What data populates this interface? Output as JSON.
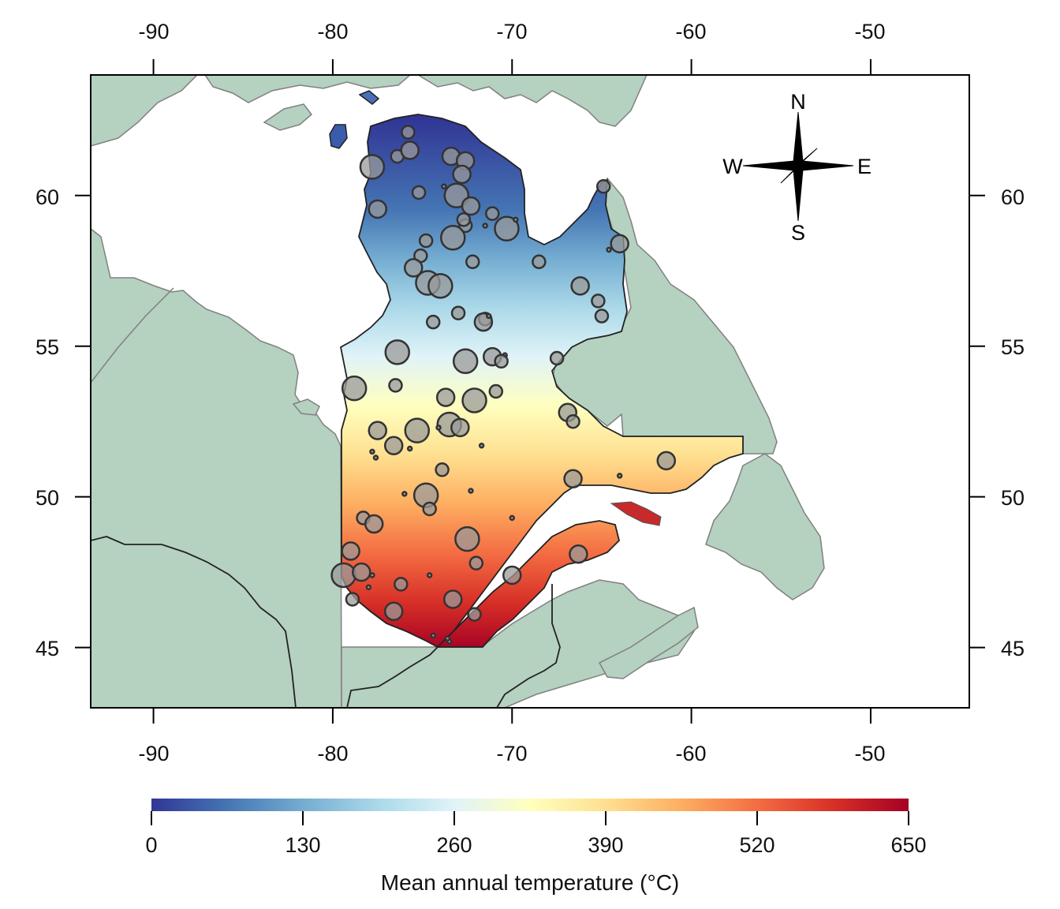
{
  "map": {
    "lon_range": [
      -93.5,
      -44.5
    ],
    "lat_range": [
      43.0,
      64.0
    ],
    "top_lon_ticks": [
      "-90",
      "-80",
      "-70",
      "-60",
      "-50"
    ],
    "bottom_lon_ticks": [
      "-90",
      "-80",
      "-70",
      "-60",
      "-50"
    ],
    "left_lat_ticks": [
      "60",
      "55",
      "50",
      "45"
    ],
    "right_lat_ticks": [
      "60",
      "55",
      "50",
      "45"
    ],
    "lon_tick_values": [
      -90,
      -80,
      -70,
      -60,
      -50
    ],
    "lat_tick_values": [
      60,
      55,
      50,
      45
    ],
    "colors": {
      "land": "#b5d1c0",
      "coast": "#808080",
      "border": "#222222",
      "station_fill": "#9a9a9a",
      "station_stroke": "#333333"
    },
    "compass": {
      "n": "N",
      "s": "S",
      "e": "E",
      "w": "W"
    }
  },
  "legend": {
    "title": "Mean annual temperature (°C)",
    "ticks": [
      "0",
      "130",
      "260",
      "390",
      "520",
      "650"
    ],
    "tick_values": [
      0,
      130,
      260,
      390,
      520,
      650
    ],
    "range": [
      0,
      650
    ],
    "colors": [
      "#313695",
      "#4575b4",
      "#74add1",
      "#abd9e9",
      "#e0f3f8",
      "#ffffbf",
      "#fee090",
      "#fdae61",
      "#f46d43",
      "#d73027",
      "#a50026"
    ]
  },
  "stations": [
    {
      "lon": -76.4,
      "lat": 61.3,
      "size": "s"
    },
    {
      "lon": -75.8,
      "lat": 62.1,
      "size": "s"
    },
    {
      "lon": -77.8,
      "lat": 60.95,
      "size": "l"
    },
    {
      "lon": -75.7,
      "lat": 61.5,
      "size": "m"
    },
    {
      "lon": -73.4,
      "lat": 61.3,
      "size": "m"
    },
    {
      "lon": -72.6,
      "lat": 61.15,
      "size": "m"
    },
    {
      "lon": -72.8,
      "lat": 60.7,
      "size": "m"
    },
    {
      "lon": -75.2,
      "lat": 60.1,
      "size": "s"
    },
    {
      "lon": -73.8,
      "lat": 60.3,
      "size": "xs"
    },
    {
      "lon": -73.1,
      "lat": 60.0,
      "size": "l"
    },
    {
      "lon": -77.5,
      "lat": 59.55,
      "size": "m"
    },
    {
      "lon": -72.3,
      "lat": 59.65,
      "size": "m"
    },
    {
      "lon": -71.1,
      "lat": 59.4,
      "size": "s"
    },
    {
      "lon": -72.6,
      "lat": 59.0,
      "size": "s"
    },
    {
      "lon": -72.7,
      "lat": 59.2,
      "size": "s"
    },
    {
      "lon": -71.5,
      "lat": 59.0,
      "size": "xs"
    },
    {
      "lon": -70.3,
      "lat": 58.9,
      "size": "l"
    },
    {
      "lon": -69.8,
      "lat": 59.2,
      "size": "xs"
    },
    {
      "lon": -74.8,
      "lat": 58.5,
      "size": "s"
    },
    {
      "lon": -73.3,
      "lat": 58.6,
      "size": "l"
    },
    {
      "lon": -72.2,
      "lat": 57.8,
      "size": "s"
    },
    {
      "lon": -68.5,
      "lat": 57.8,
      "size": "s"
    },
    {
      "lon": -75.1,
      "lat": 58.0,
      "size": "s"
    },
    {
      "lon": -75.5,
      "lat": 57.6,
      "size": "m"
    },
    {
      "lon": -74.7,
      "lat": 57.1,
      "size": "l"
    },
    {
      "lon": -74.0,
      "lat": 57.0,
      "size": "l"
    },
    {
      "lon": -66.2,
      "lat": 57.0,
      "size": "m"
    },
    {
      "lon": -65.2,
      "lat": 56.5,
      "size": "s"
    },
    {
      "lon": -73.0,
      "lat": 56.1,
      "size": "s"
    },
    {
      "lon": -71.5,
      "lat": 55.9,
      "size": "s"
    },
    {
      "lon": -71.6,
      "lat": 55.8,
      "size": "m"
    },
    {
      "lon": -71.3,
      "lat": 56.0,
      "size": "xs"
    },
    {
      "lon": -74.4,
      "lat": 55.8,
      "size": "s"
    },
    {
      "lon": -65.0,
      "lat": 56.0,
      "size": "s"
    },
    {
      "lon": -76.4,
      "lat": 54.8,
      "size": "l"
    },
    {
      "lon": -72.6,
      "lat": 54.5,
      "size": "l"
    },
    {
      "lon": -71.1,
      "lat": 54.65,
      "size": "m"
    },
    {
      "lon": -70.4,
      "lat": 54.7,
      "size": "xs"
    },
    {
      "lon": -70.6,
      "lat": 54.5,
      "size": "s"
    },
    {
      "lon": -67.5,
      "lat": 54.6,
      "size": "s"
    },
    {
      "lon": -78.8,
      "lat": 53.6,
      "size": "l"
    },
    {
      "lon": -76.5,
      "lat": 53.7,
      "size": "s"
    },
    {
      "lon": -73.7,
      "lat": 53.3,
      "size": "m"
    },
    {
      "lon": -72.1,
      "lat": 53.2,
      "size": "l"
    },
    {
      "lon": -70.9,
      "lat": 53.5,
      "size": "s"
    },
    {
      "lon": -73.5,
      "lat": 52.4,
      "size": "l"
    },
    {
      "lon": -72.9,
      "lat": 52.3,
      "size": "m"
    },
    {
      "lon": -74.1,
      "lat": 52.3,
      "size": "xs"
    },
    {
      "lon": -75.3,
      "lat": 52.2,
      "size": "l"
    },
    {
      "lon": -77.5,
      "lat": 52.2,
      "size": "m"
    },
    {
      "lon": -66.9,
      "lat": 52.8,
      "size": "m"
    },
    {
      "lon": -66.6,
      "lat": 52.5,
      "size": "s"
    },
    {
      "lon": -76.6,
      "lat": 51.7,
      "size": "m"
    },
    {
      "lon": -75.7,
      "lat": 51.6,
      "size": "xs"
    },
    {
      "lon": -71.7,
      "lat": 51.7,
      "size": "xs"
    },
    {
      "lon": -77.8,
      "lat": 51.5,
      "size": "xs"
    },
    {
      "lon": -77.6,
      "lat": 51.3,
      "size": "xs"
    },
    {
      "lon": -73.9,
      "lat": 50.9,
      "size": "s"
    },
    {
      "lon": -66.6,
      "lat": 50.6,
      "size": "m"
    },
    {
      "lon": -64.0,
      "lat": 50.7,
      "size": "xs"
    },
    {
      "lon": -61.4,
      "lat": 51.2,
      "size": "m"
    },
    {
      "lon": -76.0,
      "lat": 50.1,
      "size": "xs"
    },
    {
      "lon": -74.8,
      "lat": 50.05,
      "size": "l"
    },
    {
      "lon": -74.6,
      "lat": 49.6,
      "size": "s"
    },
    {
      "lon": -72.3,
      "lat": 50.2,
      "size": "xs"
    },
    {
      "lon": -70.0,
      "lat": 49.3,
      "size": "xs"
    },
    {
      "lon": -78.3,
      "lat": 49.3,
      "size": "s"
    },
    {
      "lon": -77.7,
      "lat": 49.1,
      "size": "m"
    },
    {
      "lon": -79.0,
      "lat": 48.2,
      "size": "m"
    },
    {
      "lon": -72.5,
      "lat": 48.6,
      "size": "l"
    },
    {
      "lon": -79.4,
      "lat": 47.4,
      "size": "l"
    },
    {
      "lon": -78.4,
      "lat": 47.5,
      "size": "m"
    },
    {
      "lon": -77.8,
      "lat": 47.4,
      "size": "xs"
    },
    {
      "lon": -78.0,
      "lat": 47.0,
      "size": "xs"
    },
    {
      "lon": -76.2,
      "lat": 47.1,
      "size": "s"
    },
    {
      "lon": -74.6,
      "lat": 47.4,
      "size": "xs"
    },
    {
      "lon": -72.0,
      "lat": 47.8,
      "size": "s"
    },
    {
      "lon": -70.0,
      "lat": 47.4,
      "size": "m"
    },
    {
      "lon": -66.3,
      "lat": 48.1,
      "size": "m"
    },
    {
      "lon": -78.9,
      "lat": 46.6,
      "size": "s"
    },
    {
      "lon": -73.3,
      "lat": 46.6,
      "size": "m"
    },
    {
      "lon": -76.6,
      "lat": 46.2,
      "size": "m"
    },
    {
      "lon": -72.1,
      "lat": 46.1,
      "size": "s"
    },
    {
      "lon": -73.5,
      "lat": 45.2,
      "size": "xs"
    },
    {
      "lon": -73.6,
      "lat": 45.3,
      "size": "xs"
    },
    {
      "lon": -74.4,
      "lat": 45.4,
      "size": "xs"
    },
    {
      "lon": -64.9,
      "lat": 60.3,
      "size": "s"
    },
    {
      "lon": -64.0,
      "lat": 58.4,
      "size": "m"
    },
    {
      "lon": -64.6,
      "lat": 58.2,
      "size": "xs"
    }
  ]
}
